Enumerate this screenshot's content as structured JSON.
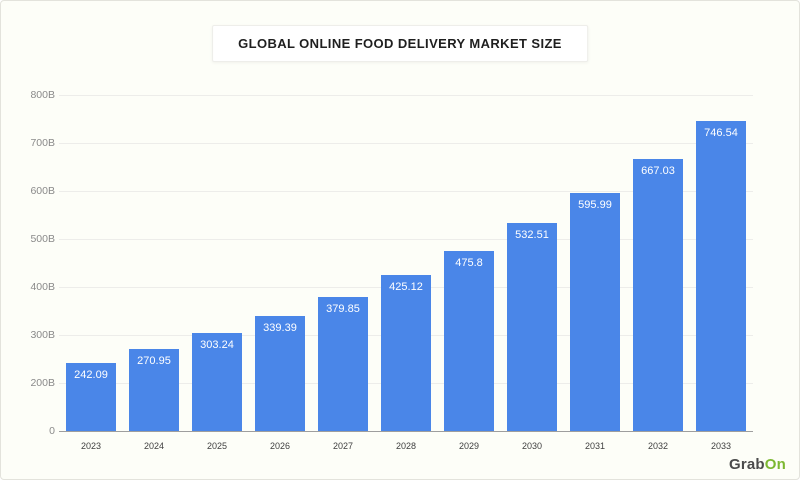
{
  "title": "GLOBAL ONLINE FOOD DELIVERY MARKET SIZE",
  "watermark": {
    "grab": "Grab",
    "on": "On"
  },
  "colors": {
    "background": "#fdfef8",
    "bar": "#4a86e8",
    "bar_value_text": "#ffffff",
    "gridline": "#ededea",
    "axis_line": "#9e9e9e",
    "y_tick_text": "#8a8a8a",
    "x_tick_text": "#3f3f3f",
    "title_text": "#1f1f1f",
    "watermark_grab": "#4b4b4b",
    "watermark_on": "#7cb831"
  },
  "chart_data": {
    "type": "bar",
    "title": "GLOBAL ONLINE FOOD DELIVERY MARKET SIZE",
    "categories": [
      "2023",
      "2024",
      "2025",
      "2026",
      "2027",
      "2028",
      "2029",
      "2030",
      "2031",
      "2032",
      "2033"
    ],
    "values": [
      242.09,
      270.95,
      303.24,
      339.39,
      379.85,
      425.12,
      475.8,
      532.51,
      595.99,
      667.03,
      746.54
    ],
    "value_labels": [
      "242.09",
      "270.95",
      "303.24",
      "339.39",
      "379.85",
      "425.12",
      "475.8",
      "532.51",
      "595.99",
      "667.03",
      "746.54"
    ],
    "y_ticks": [
      {
        "label": "0",
        "value": 0
      },
      {
        "label": "200B",
        "value": 200
      },
      {
        "label": "300B",
        "value": 300
      },
      {
        "label": "400B",
        "value": 400
      },
      {
        "label": "500B",
        "value": 500
      },
      {
        "label": "600B",
        "value": 600
      },
      {
        "label": "700B",
        "value": 700
      },
      {
        "label": "800B",
        "value": 800
      }
    ],
    "xlabel": "",
    "ylabel": "",
    "grid": true,
    "legend_position": "none",
    "axis_note": "ticks equally spaced; bottom gap spans 0-200B, remaining gaps 100B each"
  }
}
